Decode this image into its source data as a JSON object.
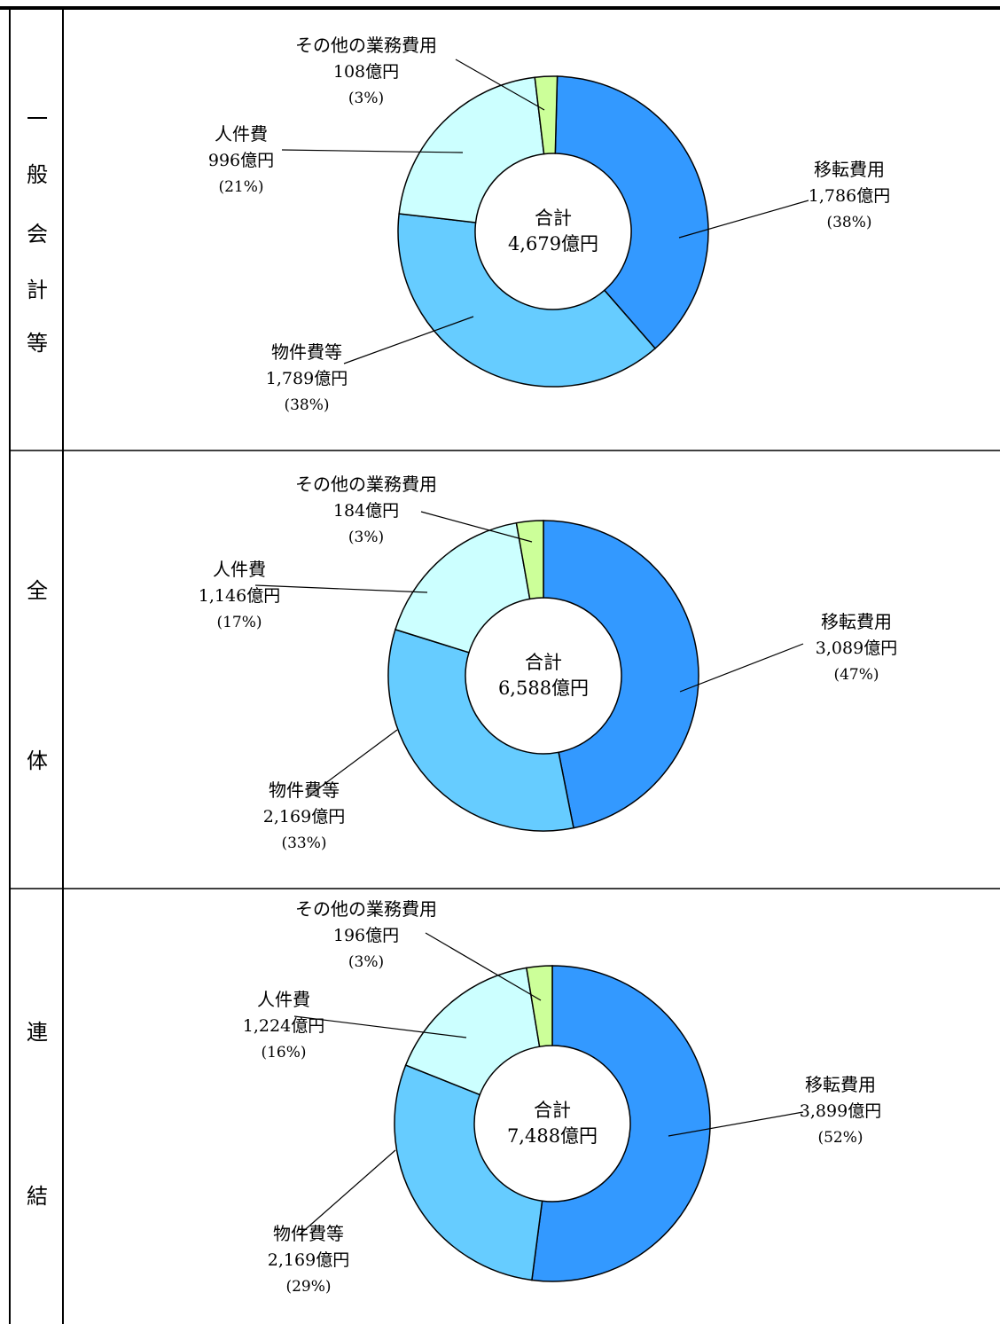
{
  "rows": [
    {
      "label_chars": [
        "一",
        "般",
        "会",
        "計",
        "等"
      ],
      "chart_data": {
        "type": "pie",
        "variant": "donut",
        "center_label": "合計",
        "center_total": "4,679億円",
        "total": 4679,
        "unit": "億円",
        "slices": [
          {
            "name": "移転費用",
            "value": 1786,
            "value_label": "1,786億円",
            "percent_label": "(38%)",
            "color": "#3399ff"
          },
          {
            "name": "物件費等",
            "value": 1789,
            "value_label": "1,789億円",
            "percent_label": "(38%)",
            "color": "#66ccff"
          },
          {
            "name": "人件費",
            "value": 996,
            "value_label": "996億円",
            "percent_label": "(21%)",
            "color": "#ccffff"
          },
          {
            "name": "その他の業務費用",
            "value": 108,
            "value_label": "108億円",
            "percent_label": "(3%)",
            "color": "#ccff99"
          }
        ]
      }
    },
    {
      "label_chars": [
        "全",
        "体"
      ],
      "chart_data": {
        "type": "pie",
        "variant": "donut",
        "center_label": "合計",
        "center_total": "6,588億円",
        "total": 6588,
        "unit": "億円",
        "slices": [
          {
            "name": "移転費用",
            "value": 3089,
            "value_label": "3,089億円",
            "percent_label": "(47%)",
            "color": "#3399ff"
          },
          {
            "name": "物件費等",
            "value": 2169,
            "value_label": "2,169億円",
            "percent_label": "(33%)",
            "color": "#66ccff"
          },
          {
            "name": "人件費",
            "value": 1146,
            "value_label": "1,146億円",
            "percent_label": "(17%)",
            "color": "#ccffff"
          },
          {
            "name": "その他の業務費用",
            "value": 184,
            "value_label": "184億円",
            "percent_label": "(3%)",
            "color": "#ccff99"
          }
        ]
      }
    },
    {
      "label_chars": [
        "連",
        "結"
      ],
      "chart_data": {
        "type": "pie",
        "variant": "donut",
        "center_label": "合計",
        "center_total": "7,488億円",
        "total": 7488,
        "unit": "億円",
        "slices": [
          {
            "name": "移転費用",
            "value": 3899,
            "value_label": "3,899億円",
            "percent_label": "(52%)",
            "color": "#3399ff"
          },
          {
            "name": "物件費等",
            "value": 2169,
            "value_label": "2,169億円",
            "percent_label": "(29%)",
            "color": "#66ccff"
          },
          {
            "name": "人件費",
            "value": 1224,
            "value_label": "1,224億円",
            "percent_label": "(16%)",
            "color": "#ccffff"
          },
          {
            "name": "その他の業務費用",
            "value": 196,
            "value_label": "196億円",
            "percent_label": "(3%)",
            "color": "#ccff99"
          }
        ]
      }
    }
  ]
}
